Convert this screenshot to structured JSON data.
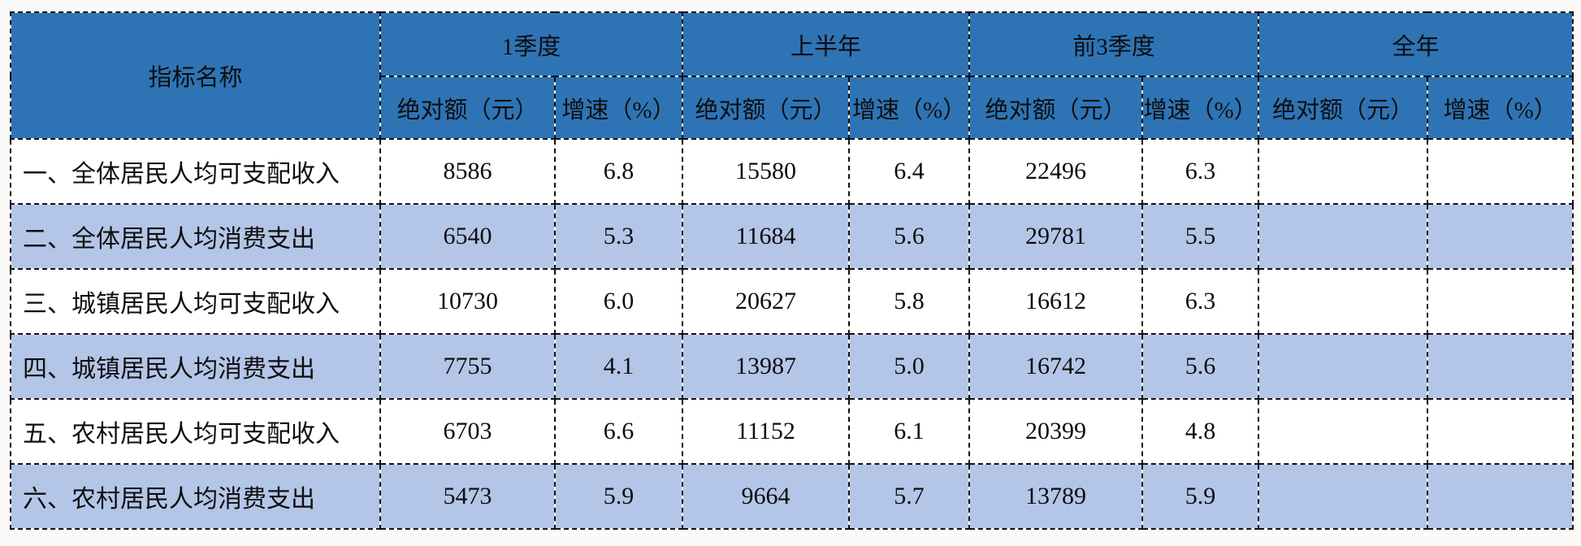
{
  "table": {
    "colors": {
      "header_bg": "#2E74B5",
      "band_bg": "#B4C6E7",
      "white_bg": "#FFFFFF",
      "border": "#111111",
      "text": "#0d0d0d",
      "page_bg": "#fbfaf8"
    },
    "header": {
      "indicator_label": "指标名称",
      "groups": [
        {
          "label": "1季度"
        },
        {
          "label": "上半年"
        },
        {
          "label": "前3季度"
        },
        {
          "label": "全年"
        }
      ],
      "sub_absolute": "绝对额（元）",
      "sub_growth": "增速（%）"
    },
    "rows": [
      {
        "label": "一、全体居民人均可支配收入",
        "values": [
          "8586",
          "6.8",
          "15580",
          "6.4",
          "22496",
          "6.3",
          "",
          ""
        ]
      },
      {
        "label": "二、全体居民人均消费支出",
        "values": [
          "6540",
          "5.3",
          "11684",
          "5.6",
          "29781",
          "5.5",
          "",
          ""
        ]
      },
      {
        "label": "三、城镇居民人均可支配收入",
        "values": [
          "10730",
          "6.0",
          "20627",
          "5.8",
          "16612",
          "6.3",
          "",
          ""
        ]
      },
      {
        "label": "四、城镇居民人均消费支出",
        "values": [
          "7755",
          "4.1",
          "13987",
          "5.0",
          "16742",
          "5.6",
          "",
          ""
        ]
      },
      {
        "label": "五、农村居民人均可支配收入",
        "values": [
          "6703",
          "6.6",
          "11152",
          "6.1",
          "20399",
          "4.8",
          "",
          ""
        ]
      },
      {
        "label": "六、农村居民人均消费支出",
        "values": [
          "5473",
          "5.9",
          "9664",
          "5.7",
          "13789",
          "5.9",
          "",
          ""
        ]
      }
    ]
  }
}
